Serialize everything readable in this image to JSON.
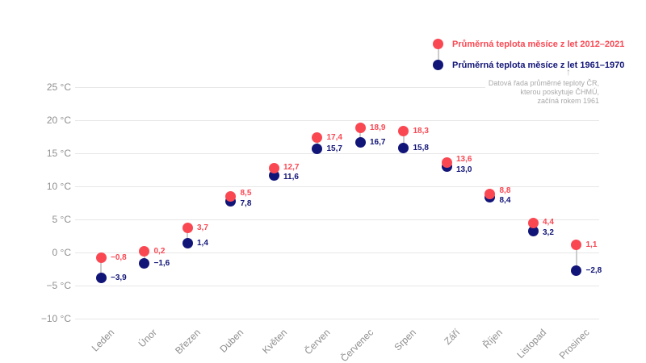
{
  "chart_data": {
    "type": "scatter",
    "title": "",
    "xlabel": "",
    "ylabel": "",
    "grid": true,
    "legend_position": "top-right",
    "ylim": [
      -10,
      25
    ],
    "categories": [
      "Leden",
      "Únor",
      "Březen",
      "Duben",
      "Květen",
      "Červen",
      "Červenec",
      "Srpen",
      "Září",
      "Říjen",
      "Listopad",
      "Prosinec"
    ],
    "series": [
      {
        "name": "Průměrná teplota měsíce z let 2012–2021",
        "color": "#fa4853",
        "values": [
          -0.8,
          0.2,
          3.7,
          8.5,
          12.7,
          17.4,
          18.9,
          18.3,
          13.6,
          8.8,
          4.4,
          1.1
        ],
        "labels": [
          "−0,8",
          "0,2",
          "3,7",
          "8,5",
          "12,7",
          "17,4",
          "18,9",
          "18,3",
          "13,6",
          "8,8",
          "4,4",
          "1,1"
        ]
      },
      {
        "name": "Průměrná teplota měsíce z let 1961–1970",
        "color": "#121578",
        "values": [
          -3.9,
          -1.6,
          1.4,
          7.8,
          11.6,
          15.7,
          16.7,
          15.8,
          13.0,
          8.4,
          3.2,
          -2.8
        ],
        "labels": [
          "−3,9",
          "−1,6",
          "1,4",
          "7,8",
          "11,6",
          "15,7",
          "16,7",
          "15,8",
          "13,0",
          "8,4",
          "3,2",
          "−2,8"
        ]
      }
    ],
    "y_ticks": [
      {
        "value": 25,
        "label": "25 °C"
      },
      {
        "value": 20,
        "label": "20 °C"
      },
      {
        "value": 15,
        "label": "15 °C"
      },
      {
        "value": 10,
        "label": "10 °C"
      },
      {
        "value": 5,
        "label": "5 °C"
      },
      {
        "value": 0,
        "label": "0 °C"
      },
      {
        "value": -5,
        "label": "−5 °C"
      },
      {
        "value": -10,
        "label": "−10 °C"
      }
    ]
  },
  "annotation": {
    "arrow": "↑",
    "lines": [
      "Datová řada průměrné teploty ČR,",
      "kterou poskytuje ČHMÚ,",
      "začíná rokem 1961"
    ]
  },
  "colors": {
    "grid": "#e7e7e7",
    "connector": "#cccccc",
    "axis_text": "#8f8f8f",
    "annotation_text": "#a9a9a9"
  }
}
